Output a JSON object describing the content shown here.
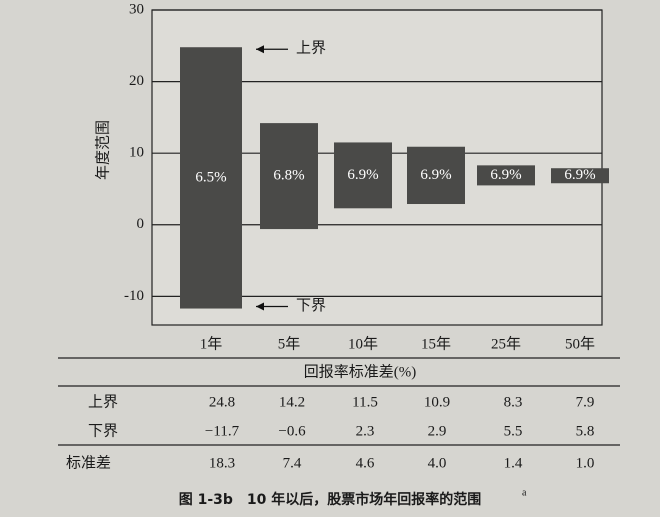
{
  "chart_data": {
    "type": "floating-bar",
    "ylabel": "年度范围",
    "categories": [
      "1年",
      "5年",
      "10年",
      "15年",
      "25年",
      "50年"
    ],
    "series": [
      {
        "name": "上界",
        "values": [
          24.8,
          14.2,
          11.5,
          10.9,
          8.3,
          7.9
        ],
        "value_labels": [
          "24.8",
          "14.2",
          "11.5",
          "10.9",
          "8.3",
          "7.9"
        ]
      },
      {
        "name": "下界",
        "values": [
          -11.7,
          -0.6,
          2.3,
          2.9,
          5.5,
          5.8
        ],
        "value_labels": [
          "−11.7",
          "−0.6",
          "2.3",
          "2.9",
          "5.5",
          "5.8"
        ]
      },
      {
        "name": "标准差",
        "values": [
          18.3,
          7.4,
          4.6,
          4.0,
          1.4,
          1.0
        ],
        "value_labels": [
          "18.3",
          "7.4",
          "4.6",
          "4.0",
          "1.4",
          "1.0"
        ]
      }
    ],
    "mean_returns": {
      "values": [
        6.5,
        6.8,
        6.9,
        6.9,
        6.9,
        6.9
      ],
      "value_labels": [
        "6.5%",
        "6.8%",
        "6.9%",
        "6.9%",
        "6.9%",
        "6.9%"
      ]
    },
    "bar_color": "#4a4a48",
    "ylim": [
      -14,
      30
    ],
    "yticks": [
      -10,
      0,
      10,
      20,
      30
    ],
    "grid": true,
    "annotations": [
      "上界",
      "下界"
    ],
    "table_header": "回报率标准差(%)",
    "caption": "图 1-3b　10 年以后，股票市场年回报率的范围",
    "caption_note": "a"
  }
}
